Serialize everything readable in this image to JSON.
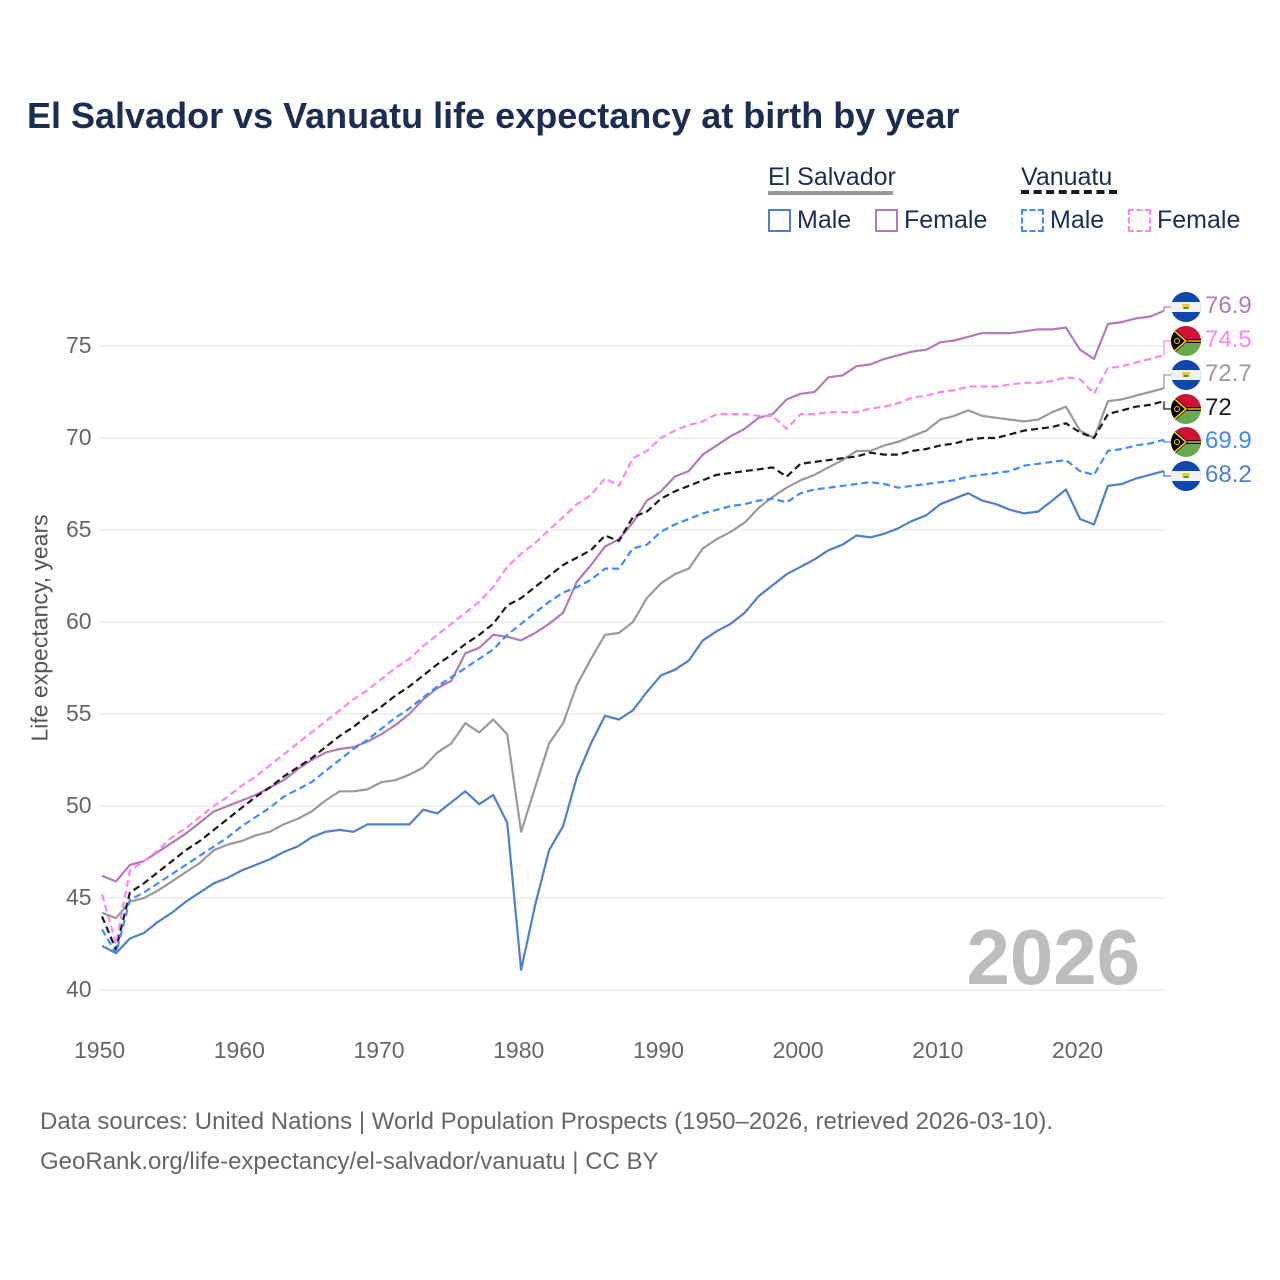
{
  "title": "El Salvador vs Vanuatu life expectancy at birth by year",
  "legend": {
    "groups": [
      {
        "name": "El Salvador",
        "items": [
          "Male",
          "Female"
        ]
      },
      {
        "name": "Vanuatu",
        "items": [
          "Male",
          "Female"
        ]
      }
    ]
  },
  "year_watermark": "2026",
  "source_lines": [
    "Data sources: United Nations | World Population Prospects (1950–2026, retrieved 2026-03-10).",
    "GeoRank.org/life-expectancy/el-salvador/vanuatu | CC BY"
  ],
  "colors": {
    "es_male": "#4f7fcc",
    "es_female": "#b37ab8",
    "es_total": "#9a9a9a",
    "vu_male": "#3d8bff",
    "vu_female": "#ff85f2",
    "vu_total": "#1a1a1a",
    "title": "#1b2e52"
  },
  "chart_data": {
    "type": "line",
    "title": "El Salvador vs Vanuatu life expectancy at birth by year",
    "xlabel": "",
    "ylabel": "Life expectancy, years",
    "xlim": [
      1950,
      2026
    ],
    "ylim": [
      40,
      77
    ],
    "xticks": [
      "1950",
      "1960",
      "1970",
      "1980",
      "1990",
      "2000",
      "2010",
      "2020"
    ],
    "yticks": [
      "40",
      "45",
      "50",
      "55",
      "60",
      "65",
      "70",
      "75"
    ],
    "grid": true,
    "legend_position": "top-right",
    "x_start": 1950,
    "series": [
      {
        "key": "es_female",
        "name": "El Salvador Female",
        "country": "El Salvador",
        "dashed": false,
        "end_label": "76.9",
        "values": [
          46.2,
          45.9,
          46.8,
          47.0,
          47.5,
          48.0,
          48.5,
          49.1,
          49.7,
          50.0,
          50.3,
          50.6,
          51.0,
          51.4,
          52.0,
          52.5,
          52.9,
          53.1,
          53.2,
          53.5,
          53.9,
          54.4,
          55.0,
          55.8,
          56.4,
          56.8,
          58.3,
          58.6,
          59.3,
          59.2,
          59.0,
          59.4,
          59.9,
          60.5,
          62.2,
          63.1,
          64.1,
          64.5,
          65.4,
          66.6,
          67.1,
          67.9,
          68.2,
          69.1,
          69.6,
          70.1,
          70.5,
          71.1,
          71.3,
          72.1,
          72.4,
          72.5,
          73.3,
          73.4,
          73.9,
          74.0,
          74.3,
          74.5,
          74.7,
          74.8,
          75.2,
          75.3,
          75.5,
          75.7,
          75.7,
          75.7,
          75.8,
          75.9,
          75.9,
          76.0,
          74.8,
          74.3,
          76.2,
          76.3,
          76.5,
          76.6,
          76.9
        ]
      },
      {
        "key": "vu_female",
        "name": "Vanuatu Female",
        "country": "Vanuatu",
        "dashed": true,
        "end_label": "74.5",
        "values": [
          45.2,
          42.5,
          46.5,
          47.0,
          47.6,
          48.3,
          48.8,
          49.4,
          50.0,
          50.5,
          51.1,
          51.6,
          52.2,
          52.8,
          53.4,
          54.0,
          54.6,
          55.2,
          55.8,
          56.3,
          56.9,
          57.5,
          58.0,
          58.7,
          59.3,
          59.9,
          60.5,
          61.1,
          61.9,
          63.0,
          63.7,
          64.3,
          65.0,
          65.7,
          66.4,
          66.9,
          67.8,
          67.4,
          68.9,
          69.3,
          70.0,
          70.4,
          70.7,
          70.9,
          71.3,
          71.3,
          71.3,
          71.2,
          71.2,
          70.5,
          71.3,
          71.3,
          71.4,
          71.4,
          71.4,
          71.6,
          71.7,
          71.9,
          72.2,
          72.3,
          72.5,
          72.6,
          72.8,
          72.8,
          72.8,
          72.9,
          73.0,
          73.0,
          73.1,
          73.3,
          73.2,
          72.4,
          73.8,
          73.9,
          74.1,
          74.3,
          74.5
        ]
      },
      {
        "key": "es_total",
        "name": "El Salvador",
        "country": "El Salvador",
        "dashed": false,
        "end_label": "72.7",
        "values": [
          44.2,
          43.9,
          44.8,
          45.0,
          45.4,
          45.9,
          46.4,
          46.9,
          47.6,
          47.9,
          48.1,
          48.4,
          48.6,
          49.0,
          49.3,
          49.7,
          50.3,
          50.8,
          50.8,
          50.9,
          51.3,
          51.4,
          51.7,
          52.1,
          52.9,
          53.4,
          54.5,
          54.0,
          54.7,
          53.9,
          48.6,
          51.0,
          53.4,
          54.5,
          56.6,
          58.0,
          59.3,
          59.4,
          60.0,
          61.3,
          62.1,
          62.6,
          62.9,
          64.0,
          64.5,
          64.9,
          65.4,
          66.2,
          66.8,
          67.3,
          67.7,
          68.0,
          68.4,
          68.8,
          69.3,
          69.3,
          69.6,
          69.8,
          70.1,
          70.4,
          71.0,
          71.2,
          71.5,
          71.2,
          71.1,
          71.0,
          70.9,
          71.0,
          71.4,
          71.7,
          70.4,
          70.0,
          72.0,
          72.1,
          72.3,
          72.5,
          72.7
        ]
      },
      {
        "key": "vu_total",
        "name": "Vanuatu",
        "country": "Vanuatu",
        "dashed": true,
        "end_label": "72",
        "values": [
          44.0,
          42.2,
          45.3,
          45.8,
          46.4,
          47.0,
          47.6,
          48.1,
          48.7,
          49.3,
          49.9,
          50.5,
          51.0,
          51.6,
          52.1,
          52.6,
          53.2,
          53.8,
          54.3,
          54.9,
          55.4,
          56.0,
          56.5,
          57.1,
          57.7,
          58.2,
          58.8,
          59.3,
          59.9,
          60.9,
          61.3,
          61.9,
          62.5,
          63.1,
          63.5,
          63.9,
          64.7,
          64.4,
          65.7,
          66.0,
          66.7,
          67.1,
          67.4,
          67.7,
          68.0,
          68.1,
          68.2,
          68.3,
          68.4,
          67.9,
          68.6,
          68.7,
          68.8,
          68.9,
          69.0,
          69.2,
          69.1,
          69.1,
          69.3,
          69.4,
          69.6,
          69.7,
          69.9,
          70.0,
          70.0,
          70.2,
          70.4,
          70.5,
          70.6,
          70.8,
          70.3,
          70.0,
          71.3,
          71.5,
          71.7,
          71.8,
          72.0
        ]
      },
      {
        "key": "vu_male",
        "name": "Vanuatu Male",
        "country": "Vanuatu",
        "dashed": true,
        "end_label": "69.9",
        "values": [
          43.3,
          42.0,
          44.9,
          45.3,
          45.8,
          46.3,
          46.8,
          47.3,
          47.8,
          48.3,
          48.9,
          49.4,
          49.9,
          50.5,
          50.9,
          51.3,
          51.9,
          52.5,
          53.1,
          53.6,
          54.2,
          54.8,
          55.3,
          55.9,
          56.5,
          57.0,
          57.5,
          58.0,
          58.5,
          59.3,
          59.9,
          60.5,
          61.1,
          61.6,
          61.9,
          62.3,
          62.9,
          62.9,
          64.0,
          64.2,
          64.9,
          65.3,
          65.6,
          65.9,
          66.1,
          66.3,
          66.4,
          66.6,
          66.7,
          66.5,
          67.0,
          67.2,
          67.3,
          67.4,
          67.5,
          67.6,
          67.5,
          67.3,
          67.4,
          67.5,
          67.6,
          67.7,
          67.9,
          68.0,
          68.1,
          68.2,
          68.5,
          68.6,
          68.7,
          68.8,
          68.2,
          68.0,
          69.3,
          69.4,
          69.6,
          69.7,
          69.9
        ]
      },
      {
        "key": "es_male",
        "name": "El Salvador Male",
        "country": "El Salvador",
        "dashed": false,
        "end_label": "68.2",
        "values": [
          42.4,
          42.0,
          42.8,
          43.1,
          43.7,
          44.2,
          44.8,
          45.3,
          45.8,
          46.1,
          46.5,
          46.8,
          47.1,
          47.5,
          47.8,
          48.3,
          48.6,
          48.7,
          48.6,
          49.0,
          49.0,
          49.0,
          49.0,
          49.8,
          49.6,
          50.2,
          50.8,
          50.1,
          50.6,
          49.1,
          41.1,
          44.6,
          47.6,
          48.9,
          51.6,
          53.4,
          54.9,
          54.7,
          55.2,
          56.2,
          57.1,
          57.4,
          57.9,
          59.0,
          59.5,
          59.9,
          60.5,
          61.4,
          62.0,
          62.6,
          63.0,
          63.4,
          63.9,
          64.2,
          64.7,
          64.6,
          64.8,
          65.1,
          65.5,
          65.8,
          66.4,
          66.7,
          67.0,
          66.6,
          66.4,
          66.1,
          65.9,
          66.0,
          66.6,
          67.2,
          65.6,
          65.3,
          67.4,
          67.5,
          67.8,
          68.0,
          68.2
        ]
      }
    ]
  }
}
